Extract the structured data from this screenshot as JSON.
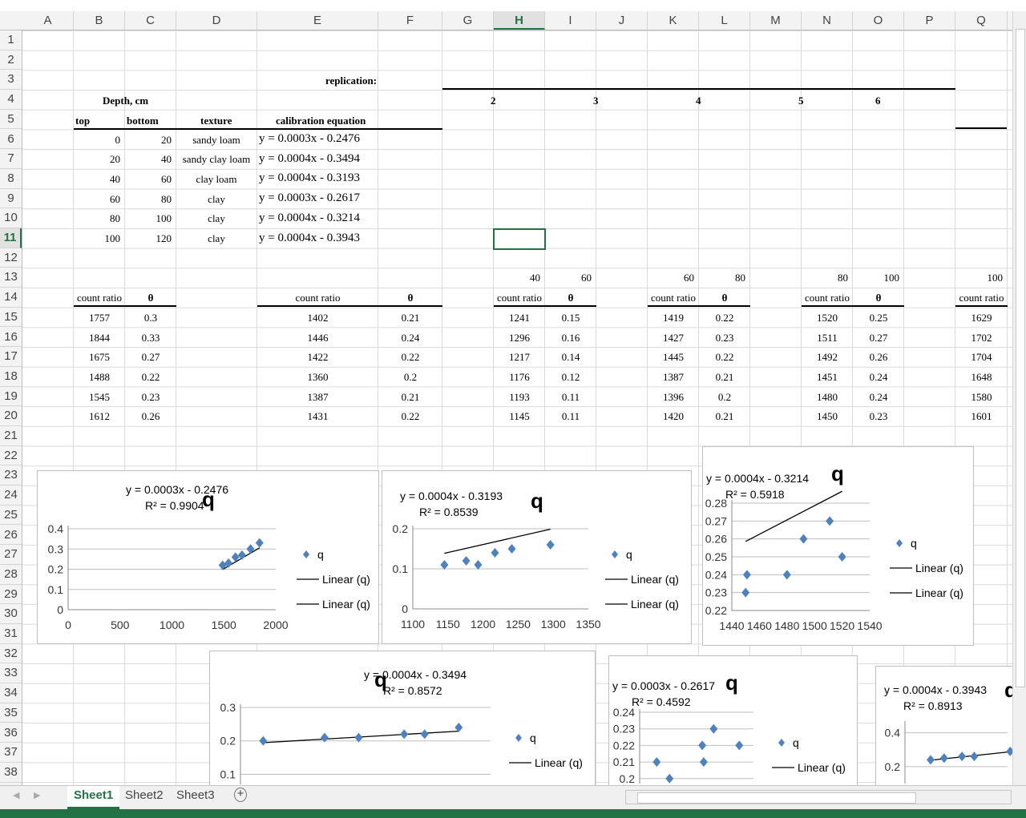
{
  "columns": [
    "A",
    "B",
    "C",
    "D",
    "E",
    "F",
    "G",
    "H",
    "I",
    "J",
    "K",
    "L",
    "M",
    "N",
    "O",
    "P",
    "Q"
  ],
  "selected_column": "H",
  "rows": [
    "1",
    "2",
    "3",
    "4",
    "5",
    "6",
    "7",
    "8",
    "9",
    "10",
    "11",
    "12",
    "13",
    "14",
    "15",
    "16",
    "17",
    "18",
    "19",
    "20",
    "21",
    "22",
    "23",
    "24",
    "25",
    "26",
    "27",
    "28",
    "29",
    "30",
    "31",
    "32",
    "33",
    "34",
    "35",
    "36",
    "37",
    "38"
  ],
  "selected_row": "11",
  "sheet": {
    "replication_label": "replication:",
    "replications": [
      "2",
      "3",
      "4",
      "5",
      "6"
    ],
    "depth_label": "Depth, cm",
    "headers": {
      "top": "top",
      "bottom": "bottom",
      "texture": "texture",
      "calibration": "calibration equation"
    },
    "depth_rows": [
      {
        "top": "0",
        "bottom": "20",
        "texture": "sandy loam",
        "eq": "y = 0.0003x - 0.2476"
      },
      {
        "top": "20",
        "bottom": "40",
        "texture": "sandy clay loam",
        "eq": "y = 0.0004x - 0.3494"
      },
      {
        "top": "40",
        "bottom": "60",
        "texture": "clay loam",
        "eq": "y = 0.0004x - 0.3193"
      },
      {
        "top": "60",
        "bottom": "80",
        "texture": "clay",
        "eq": "y = 0.0003x - 0.2617"
      },
      {
        "top": "80",
        "bottom": "100",
        "texture": "clay",
        "eq": "y = 0.0004x - 0.3214"
      },
      {
        "top": "100",
        "bottom": "120",
        "texture": "clay",
        "eq": "y = 0.0004x - 0.3943"
      }
    ],
    "row13": {
      "h": "40",
      "i": "60",
      "k": "60",
      "l": "80",
      "n": "80",
      "o": "100",
      "q": "100"
    },
    "count_ratio": "count ratio",
    "theta": "θ",
    "blockB": {
      "cr": [
        "1757",
        "1844",
        "1675",
        "1488",
        "1545",
        "1612"
      ],
      "th": [
        "0.3",
        "0.33",
        "0.27",
        "0.22",
        "0.23",
        "0.26"
      ]
    },
    "blockE": {
      "cr": [
        "1402",
        "1446",
        "1422",
        "1360",
        "1387",
        "1431"
      ],
      "th": [
        "0.21",
        "0.24",
        "0.22",
        "0.2",
        "0.21",
        "0.22"
      ]
    },
    "blockH": {
      "cr": [
        "1241",
        "1296",
        "1217",
        "1176",
        "1193",
        "1145"
      ],
      "th": [
        "0.15",
        "0.16",
        "0.14",
        "0.12",
        "0.11",
        "0.11"
      ]
    },
    "blockK": {
      "cr": [
        "1419",
        "1427",
        "1445",
        "1387",
        "1396",
        "1420"
      ],
      "th": [
        "0.22",
        "0.23",
        "0.22",
        "0.21",
        "0.2",
        "0.21"
      ]
    },
    "blockN": {
      "cr": [
        "1520",
        "1511",
        "1492",
        "1451",
        "1480",
        "1450"
      ],
      "th": [
        "0.25",
        "0.27",
        "0.26",
        "0.24",
        "0.24",
        "0.23"
      ]
    },
    "blockQ": {
      "cr": [
        "1629",
        "1702",
        "1704",
        "1648",
        "1580",
        "1601"
      ]
    }
  },
  "colors": {
    "marker": "#4f81bd",
    "accent": "#217346",
    "line": "#000000"
  },
  "chart_data": [
    {
      "type": "scatter",
      "title": "q",
      "equation": "y = 0.0003x - 0.2476",
      "r2": "R² = 0.9904",
      "x": [
        1757,
        1844,
        1675,
        1488,
        1545,
        1612
      ],
      "y": [
        0.3,
        0.33,
        0.27,
        0.22,
        0.23,
        0.26
      ],
      "xlim": [
        0,
        2000
      ],
      "ylim": [
        0,
        0.4
      ],
      "xticks": [
        "0",
        "500",
        "1000",
        "1500",
        "2000"
      ],
      "yticks": [
        "0",
        "0.1",
        "0.2",
        "0.3",
        "0.4"
      ],
      "trend": {
        "slope": 0.0003,
        "intercept": -0.2476
      },
      "legend": [
        "q",
        "Linear (q)",
        "Linear (q)"
      ]
    },
    {
      "type": "scatter",
      "title": "q",
      "equation": "y = 0.0004x - 0.3193",
      "r2": "R² = 0.8539",
      "x": [
        1241,
        1296,
        1217,
        1176,
        1193,
        1145
      ],
      "y": [
        0.15,
        0.16,
        0.14,
        0.12,
        0.11,
        0.11
      ],
      "xlim": [
        1100,
        1350
      ],
      "ylim": [
        0,
        0.2
      ],
      "xticks": [
        "1100",
        "1150",
        "1200",
        "1250",
        "1300",
        "1350"
      ],
      "yticks": [
        "0",
        "0.1",
        "0.2"
      ],
      "trend": {
        "slope": 0.0004,
        "intercept": -0.3193
      },
      "legend": [
        "q",
        "Linear (q)",
        "Linear (q)"
      ]
    },
    {
      "type": "scatter",
      "title": "q",
      "equation": "y = 0.0004x - 0.3214",
      "r2": "R² = 0.5918",
      "x": [
        1520,
        1511,
        1492,
        1451,
        1480,
        1450
      ],
      "y": [
        0.25,
        0.27,
        0.26,
        0.24,
        0.24,
        0.23
      ],
      "xlim": [
        1440,
        1540
      ],
      "ylim": [
        0.22,
        0.28
      ],
      "xticks": [
        "1440",
        "1460",
        "1480",
        "1500",
        "1520",
        "1540"
      ],
      "yticks": [
        "0.22",
        "0.23",
        "0.24",
        "0.25",
        "0.26",
        "0.27",
        "0.28"
      ],
      "trend": {
        "slope": 0.0004,
        "intercept": -0.3214
      },
      "legend": [
        "q",
        "Linear (q)",
        "Linear (q)"
      ]
    },
    {
      "type": "scatter",
      "title": "q",
      "equation": "y = 0.0004x - 0.3494",
      "r2": "R² = 0.8572",
      "x": [
        1402,
        1446,
        1422,
        1360,
        1387,
        1431
      ],
      "y": [
        0.21,
        0.24,
        0.22,
        0.2,
        0.21,
        0.22
      ],
      "xlim": [
        1350,
        1460
      ],
      "ylim": [
        0.07,
        0.3
      ],
      "xticks": [],
      "yticks": [
        "0.1",
        "0.2",
        "0.3"
      ],
      "trend": {
        "slope": 0.0004,
        "intercept": -0.3494
      },
      "legend": [
        "q",
        "Linear (q)"
      ]
    },
    {
      "type": "scatter",
      "title": "q",
      "equation": "y = 0.0003x - 0.2617",
      "r2": "R² = 0.4592",
      "x": [
        1419,
        1427,
        1445,
        1387,
        1396,
        1420
      ],
      "y": [
        0.22,
        0.23,
        0.22,
        0.21,
        0.2,
        0.21
      ],
      "xlim": [
        1375,
        1455
      ],
      "ylim": [
        0.197,
        0.24
      ],
      "xticks": [],
      "yticks": [
        "0.2",
        "0.21",
        "0.22",
        "0.23",
        "0.24"
      ],
      "trend": {
        "slope": 0.0003,
        "intercept": -0.2617
      },
      "legend": [
        "q",
        "Linear (q)"
      ]
    },
    {
      "type": "scatter",
      "title": "q",
      "equation": "y = 0.0004x - 0.3943",
      "r2": "R² = 0.8913",
      "x": [
        1580,
        1601,
        1629,
        1648,
        1704
      ],
      "y": [
        0.24,
        0.25,
        0.26,
        0.26,
        0.29
      ],
      "xlim": [
        1540,
        1700
      ],
      "ylim": [
        0.1,
        0.45
      ],
      "xticks": [],
      "yticks": [
        "0.2",
        "0.4"
      ],
      "trend": {
        "slope": 0.0004,
        "intercept": -0.3943
      },
      "legend": []
    }
  ],
  "tabs": [
    "Sheet1",
    "Sheet2",
    "Sheet3"
  ],
  "active_tab": "Sheet1",
  "add_sheet": "+",
  "nav_prev": "◀",
  "nav_next": "▶"
}
